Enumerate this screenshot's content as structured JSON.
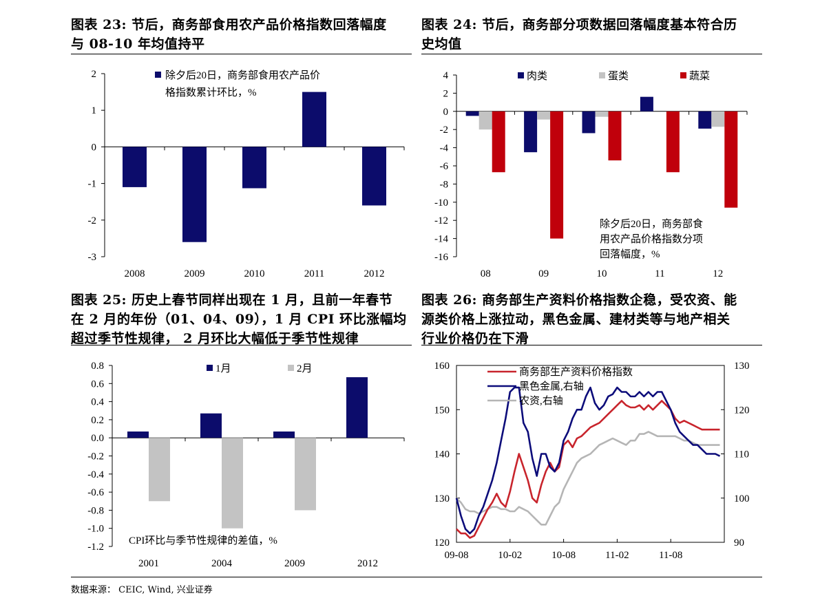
{
  "panels": [
    {
      "title_lines": [
        "图表 23: 节后，商务部食用农产品价格指数回落幅度",
        "与 08-10 年均值持平"
      ]
    },
    {
      "title_lines": [
        "图表 24: 节后，商务部分项数据回落幅度基本符合历",
        "史均值"
      ]
    },
    {
      "title_lines": [
        "图表 25: 历史上春节同样出现在 1 月，且前一年春节",
        "在 2 月的年份（01、04、09），1 月 CPI 环比涨幅均",
        "超过季节性规律，  2 月环比大幅低于季节性规律"
      ]
    },
    {
      "title_lines": [
        "图表 26: 商务部生产资料价格指数企稳，受农资、能",
        "源类价格上涨拉动，黑色金属、建材类等与地产相关",
        "行业价格仍在下滑"
      ]
    }
  ],
  "source_text": "数据来源：  CEIC, Wind,  兴业证券",
  "colors": {
    "navy": "#0c0c6b",
    "gray": "#c3c3c3",
    "red": "#c0000b",
    "line_red": "#c8242c",
    "line_navy": "#0c0c7a",
    "line_gray": "#b5b5b5"
  },
  "chart_data": [
    {
      "type": "bar",
      "categories": [
        "2008",
        "2009",
        "2010",
        "2011",
        "2012"
      ],
      "series": [
        {
          "name": "除夕后20日，商务部食用农产品价格指数累计环比，%",
          "values": [
            -1.1,
            -2.6,
            -1.13,
            1.5,
            -1.6
          ]
        }
      ],
      "legend_lines": [
        "除夕后20日，商务部食用农产品价",
        "格指数累计环比，%"
      ],
      "ylim": [
        -3,
        2
      ],
      "yticks": [
        "2",
        "1",
        "0",
        "-1",
        "-2",
        "-3"
      ],
      "legend": "top-left"
    },
    {
      "type": "bar",
      "categories": [
        "08",
        "09",
        "10",
        "11",
        "12"
      ],
      "series": [
        {
          "name": "肉类",
          "values": [
            -0.5,
            -4.5,
            -2.4,
            1.6,
            -1.9
          ]
        },
        {
          "name": "蛋类",
          "values": [
            -2.0,
            -0.9,
            -0.6,
            0.0,
            -1.7
          ]
        },
        {
          "name": "蔬菜",
          "values": [
            -6.7,
            -14.0,
            -5.4,
            -6.7,
            -10.6
          ]
        }
      ],
      "ylim": [
        -16,
        4
      ],
      "yticks": [
        "4",
        "2",
        "0",
        "-2",
        "-4",
        "-6",
        "-8",
        "-10",
        "-12",
        "-14",
        "-16"
      ],
      "annotation_lines": [
        "除夕后20日，商务部食",
        "用农产品价格指数分项",
        "回落幅度，%"
      ],
      "legend": "top"
    },
    {
      "type": "bar",
      "categories": [
        "2001",
        "2004",
        "2009",
        "2012"
      ],
      "series": [
        {
          "name": "1月",
          "values": [
            0.07,
            0.27,
            0.07,
            0.67
          ]
        },
        {
          "name": "2月",
          "values": [
            -0.7,
            -1.0,
            -0.8,
            0.0
          ]
        }
      ],
      "ylim": [
        -1.2,
        0.8
      ],
      "yticks": [
        "0.8",
        "0.6",
        "0.4",
        "0.2",
        "0.0",
        "-0.2",
        "-0.4",
        "-0.6",
        "-0.8",
        "-1.0",
        "-1.2"
      ],
      "annotation": "CPI环比与季节性规律的差值，%",
      "legend": "top"
    },
    {
      "type": "line",
      "x_ticks": [
        "09-08",
        "10-02",
        "10-08",
        "11-02",
        "11-08"
      ],
      "x_tick_pos": [
        0,
        6,
        12,
        18,
        24
      ],
      "x_range": [
        0,
        30
      ],
      "y_left": {
        "ylim": [
          120,
          160
        ],
        "ticks": [
          "160",
          "150",
          "140",
          "130",
          "120"
        ]
      },
      "y_right": {
        "ylim": [
          90,
          130
        ],
        "ticks": [
          "130",
          "120",
          "110",
          "100",
          "90"
        ]
      },
      "series": [
        {
          "name": "商务部生产资料价格指数",
          "axis": "left",
          "points": [
            [
              0,
              123
            ],
            [
              0.5,
              122
            ],
            [
              1,
              122
            ],
            [
              1.5,
              121
            ],
            [
              2,
              121.5
            ],
            [
              2.5,
              123.5
            ],
            [
              3,
              125.5
            ],
            [
              3.5,
              127.5
            ],
            [
              4,
              129
            ],
            [
              4.5,
              131
            ],
            [
              5,
              129
            ],
            [
              5.5,
              128
            ],
            [
              6,
              131.5
            ],
            [
              6.5,
              136
            ],
            [
              7,
              140
            ],
            [
              7.5,
              137
            ],
            [
              8,
              134
            ],
            [
              8.5,
              130
            ],
            [
              9,
              129
            ],
            [
              9.5,
              133
            ],
            [
              10,
              136
            ],
            [
              10.5,
              138
            ],
            [
              11,
              136
            ],
            [
              11.5,
              137
            ],
            [
              12,
              142
            ],
            [
              12.5,
              143
            ],
            [
              13,
              141.5
            ],
            [
              13.5,
              143.5
            ],
            [
              14,
              144
            ],
            [
              14.5,
              145
            ],
            [
              15,
              146
            ],
            [
              15.5,
              146.5
            ],
            [
              16,
              147
            ],
            [
              16.5,
              148
            ],
            [
              17,
              149
            ],
            [
              17.5,
              150
            ],
            [
              18,
              151
            ],
            [
              18.5,
              152
            ],
            [
              19,
              151
            ],
            [
              19.5,
              150.5
            ],
            [
              20,
              150.5
            ],
            [
              20.5,
              151
            ],
            [
              21,
              150
            ],
            [
              21.5,
              151
            ],
            [
              22,
              150
            ],
            [
              22.5,
              151
            ],
            [
              23,
              152
            ],
            [
              23.5,
              151
            ],
            [
              24,
              150
            ],
            [
              24.5,
              148
            ],
            [
              25,
              147
            ],
            [
              25.5,
              147.5
            ],
            [
              26,
              147
            ],
            [
              26.5,
              146.5
            ],
            [
              27,
              146
            ],
            [
              27.5,
              145.5
            ],
            [
              28,
              145.5
            ],
            [
              28.5,
              145.5
            ],
            [
              29,
              145.5
            ],
            [
              29.5,
              145.5
            ]
          ]
        },
        {
          "name": "黑色金属,右轴",
          "axis": "right",
          "points": [
            [
              0,
              100
            ],
            [
              0.5,
              96
            ],
            [
              1,
              93
            ],
            [
              1.5,
              92
            ],
            [
              2,
              93
            ],
            [
              2.5,
              96
            ],
            [
              3,
              98
            ],
            [
              3.5,
              101
            ],
            [
              4,
              104
            ],
            [
              4.5,
              108
            ],
            [
              5,
              113
            ],
            [
              5.5,
              118
            ],
            [
              6,
              124
            ],
            [
              6.5,
              125
            ],
            [
              7,
              125
            ],
            [
              7.5,
              117
            ],
            [
              8,
              115
            ],
            [
              8.5,
              109
            ],
            [
              9,
              105
            ],
            [
              9.5,
              110
            ],
            [
              10,
              110
            ],
            [
              10.5,
              107
            ],
            [
              11,
              106
            ],
            [
              11.5,
              108
            ],
            [
              12,
              113
            ],
            [
              12.5,
              115
            ],
            [
              13,
              118
            ],
            [
              13.5,
              120
            ],
            [
              14,
              120
            ],
            [
              14.5,
              123
            ],
            [
              15,
              125
            ],
            [
              15.5,
              121.5
            ],
            [
              16,
              120
            ],
            [
              16.5,
              121
            ],
            [
              17,
              123
            ],
            [
              17.5,
              123.5
            ],
            [
              18,
              125
            ],
            [
              18.5,
              124
            ],
            [
              19,
              124
            ],
            [
              19.5,
              123
            ],
            [
              20,
              123
            ],
            [
              20.5,
              124
            ],
            [
              21,
              123
            ],
            [
              21.5,
              124
            ],
            [
              22,
              123
            ],
            [
              22.5,
              124
            ],
            [
              23,
              124
            ],
            [
              23.5,
              122
            ],
            [
              24,
              120
            ],
            [
              24.5,
              117
            ],
            [
              25,
              115
            ],
            [
              25.5,
              114
            ],
            [
              26,
              113
            ],
            [
              26.5,
              112
            ],
            [
              27,
              112
            ],
            [
              27.5,
              111
            ],
            [
              28,
              110
            ],
            [
              28.5,
              110
            ],
            [
              29,
              110
            ],
            [
              29.5,
              109.5
            ]
          ]
        },
        {
          "name": "农资,右轴",
          "axis": "right",
          "points": [
            [
              0,
              100
            ],
            [
              0.5,
              99
            ],
            [
              1,
              97.5
            ],
            [
              1.5,
              97
            ],
            [
              2,
              97
            ],
            [
              2.5,
              96.5
            ],
            [
              3,
              97
            ],
            [
              3.5,
              97.5
            ],
            [
              4,
              98
            ],
            [
              4.5,
              98
            ],
            [
              5,
              97.5
            ],
            [
              5.5,
              97.5
            ],
            [
              6,
              97
            ],
            [
              6.5,
              97
            ],
            [
              7,
              98
            ],
            [
              7.5,
              97.5
            ],
            [
              8,
              97
            ],
            [
              8.5,
              96
            ],
            [
              9,
              95
            ],
            [
              9.5,
              94
            ],
            [
              10,
              94
            ],
            [
              10.5,
              96
            ],
            [
              11,
              98
            ],
            [
              11.5,
              99
            ],
            [
              12,
              102
            ],
            [
              12.5,
              104
            ],
            [
              13,
              106
            ],
            [
              13.5,
              108
            ],
            [
              14,
              109
            ],
            [
              14.5,
              109.5
            ],
            [
              15,
              110
            ],
            [
              15.5,
              111
            ],
            [
              16,
              112
            ],
            [
              16.5,
              112.5
            ],
            [
              17,
              113
            ],
            [
              17.5,
              113.5
            ],
            [
              18,
              113
            ],
            [
              18.5,
              112.5
            ],
            [
              19,
              112
            ],
            [
              19.5,
              113
            ],
            [
              20,
              113
            ],
            [
              20.5,
              114.5
            ],
            [
              21,
              114.5
            ],
            [
              21.5,
              115
            ],
            [
              22,
              114.5
            ],
            [
              22.5,
              114
            ],
            [
              23,
              114
            ],
            [
              23.5,
              114
            ],
            [
              24,
              114
            ],
            [
              24.5,
              114
            ],
            [
              25,
              113.5
            ],
            [
              25.5,
              113
            ],
            [
              26,
              113
            ],
            [
              26.5,
              112.5
            ],
            [
              27,
              112
            ],
            [
              27.5,
              112
            ],
            [
              28,
              112
            ],
            [
              28.5,
              112
            ],
            [
              29,
              112
            ],
            [
              29.5,
              112
            ]
          ]
        }
      ],
      "legend": "top-left"
    }
  ]
}
